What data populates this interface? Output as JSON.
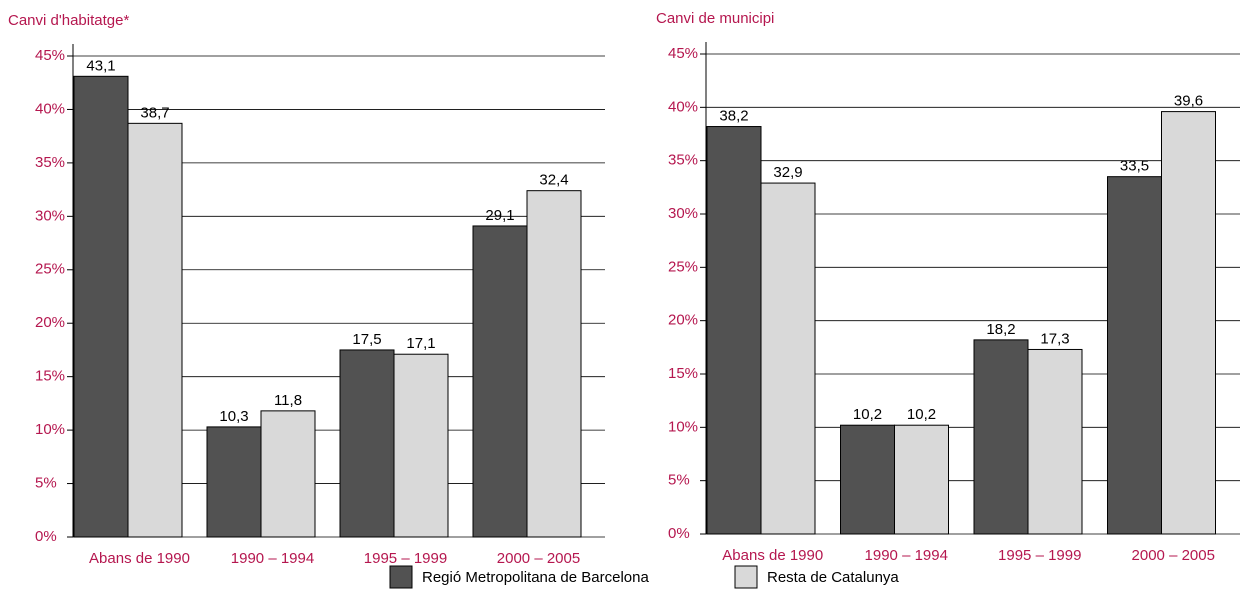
{
  "chart_data": [
    {
      "type": "bar",
      "title": "Canvi d'habitatge*",
      "categories": [
        "Abans de 1990",
        "1990 – 1994",
        "1995 – 1999",
        "2000 – 2005"
      ],
      "series": [
        {
          "name": "Regió Metropolitana de Barcelona",
          "color": "#525252",
          "values": [
            43.1,
            10.3,
            17.5,
            29.1
          ],
          "value_labels": [
            "43,1",
            "10,3",
            "17,5",
            "29,1"
          ]
        },
        {
          "name": "Resta de Catalunya",
          "color": "#d9d9d9",
          "values": [
            38.7,
            11.8,
            17.1,
            32.4
          ],
          "value_labels": [
            "38,7",
            "11,8",
            "17,1",
            "32,4"
          ]
        }
      ],
      "ylim": [
        0,
        45
      ],
      "yticks": [
        {
          "value": 0,
          "label": "0%"
        },
        {
          "value": 5,
          "label": "5%"
        },
        {
          "value": 10,
          "label": "10%"
        },
        {
          "value": 15,
          "label": "15%"
        },
        {
          "value": 20,
          "label": "20%"
        },
        {
          "value": 25,
          "label": "25%"
        },
        {
          "value": 30,
          "label": "30%"
        },
        {
          "value": 35,
          "label": "35%"
        },
        {
          "value": 40,
          "label": "40%"
        },
        {
          "value": 45,
          "label": "45%"
        }
      ],
      "grid": true
    },
    {
      "type": "bar",
      "title": "Canvi de municipi",
      "categories": [
        "Abans de 1990",
        "1990 – 1994",
        "1995 – 1999",
        "2000 – 2005"
      ],
      "series": [
        {
          "name": "Regió Metropolitana de Barcelona",
          "color": "#525252",
          "values": [
            38.2,
            10.2,
            18.2,
            33.5
          ],
          "value_labels": [
            "38,2",
            "10,2",
            "18,2",
            "33,5"
          ]
        },
        {
          "name": "Resta de Catalunya",
          "color": "#d9d9d9",
          "values": [
            32.9,
            10.2,
            17.3,
            39.6
          ],
          "value_labels": [
            "32,9",
            "10,2",
            "17,3",
            "39,6"
          ]
        }
      ],
      "ylim": [
        0,
        45
      ],
      "yticks": [
        {
          "value": 0,
          "label": "0%"
        },
        {
          "value": 5,
          "label": "5%"
        },
        {
          "value": 10,
          "label": "10%"
        },
        {
          "value": 15,
          "label": "15%"
        },
        {
          "value": 20,
          "label": "20%"
        },
        {
          "value": 25,
          "label": "25%"
        },
        {
          "value": 30,
          "label": "30%"
        },
        {
          "value": 35,
          "label": "35%"
        },
        {
          "value": 40,
          "label": "40%"
        },
        {
          "value": 45,
          "label": "45%"
        }
      ],
      "grid": true
    }
  ]
}
